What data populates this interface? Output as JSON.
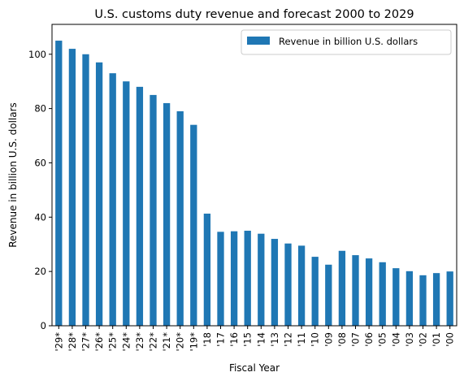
{
  "chart_data": {
    "type": "bar",
    "title": "U.S. customs duty revenue and forecast 2000 to 2029",
    "xlabel": "Fiscal Year",
    "ylabel": "Revenue in billion U.S. dollars",
    "ylim": [
      0,
      111
    ],
    "yticks": [
      0,
      20,
      40,
      60,
      80,
      100
    ],
    "grid": false,
    "legend_position": "top-right",
    "categories": [
      "'29*",
      "'28*",
      "'27*",
      "'26*",
      "'25*",
      "'24*",
      "'23*",
      "'22*",
      "'21*",
      "'20*",
      "'19*",
      "'18",
      "'17",
      "'16",
      "'15",
      "'14",
      "'13",
      "'12",
      "'11",
      "'10",
      "'09",
      "'08",
      "'07",
      "'06",
      "'05",
      "'04",
      "'03",
      "'02",
      "'01",
      "'00"
    ],
    "series": [
      {
        "name": "Revenue in billion U.S. dollars",
        "color": "#1f77b4",
        "values": [
          105,
          102,
          100,
          97,
          93,
          90,
          88,
          85,
          82,
          79,
          74,
          41.3,
          34.6,
          34.8,
          35.0,
          33.9,
          32.0,
          30.3,
          29.5,
          25.4,
          22.5,
          27.6,
          26.0,
          24.8,
          23.4,
          21.2,
          20.1,
          18.6,
          19.4,
          20.0
        ]
      }
    ]
  }
}
